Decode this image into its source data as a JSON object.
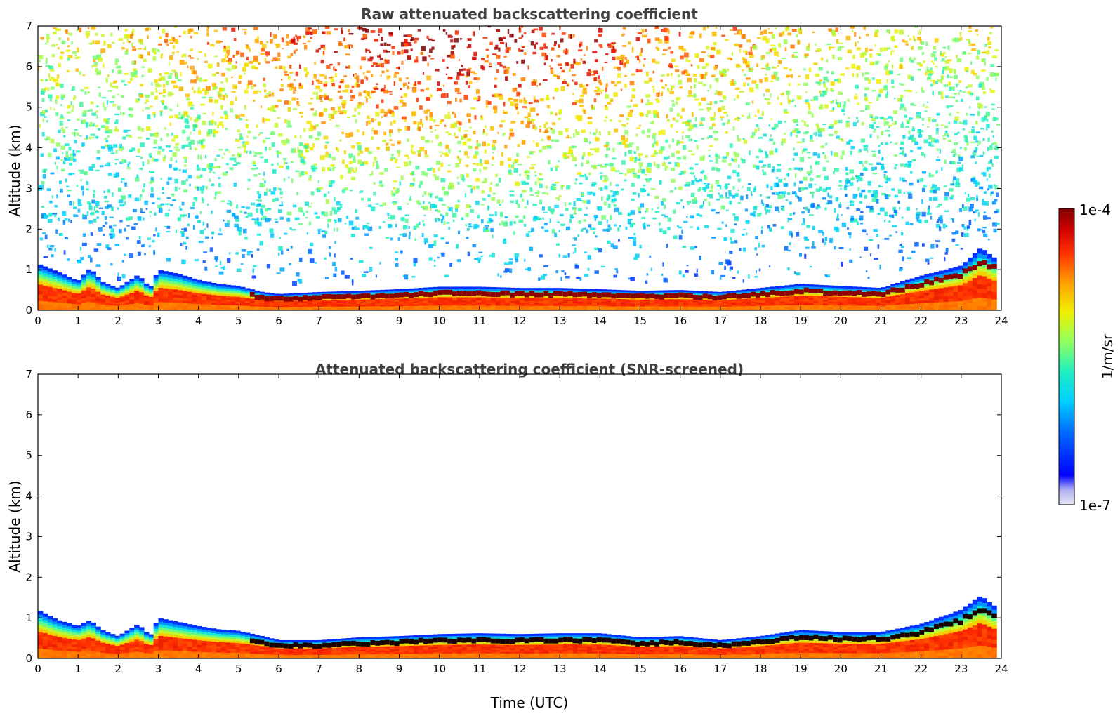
{
  "chart_data": [
    {
      "type": "heatmap",
      "title": "Raw attenuated backscattering coefficient",
      "xlabel": "",
      "ylabel": "Altitude (km)",
      "xlim": [
        0,
        24
      ],
      "ylim": [
        0,
        7
      ],
      "xticks": [
        "0",
        "1",
        "2",
        "3",
        "4",
        "5",
        "6",
        "7",
        "8",
        "9",
        "10",
        "11",
        "12",
        "13",
        "14",
        "15",
        "16",
        "17",
        "18",
        "19",
        "20",
        "21",
        "22",
        "23",
        "24"
      ],
      "yticks": [
        "0",
        "1",
        "2",
        "3",
        "4",
        "5",
        "6",
        "7"
      ],
      "data_end_time": 23.8,
      "screened": false,
      "boundary_layer_top_km": [
        [
          0.0,
          1.15
        ],
        [
          0.5,
          0.95
        ],
        [
          1.0,
          0.72
        ],
        [
          1.3,
          1.05
        ],
        [
          1.6,
          0.7
        ],
        [
          2.0,
          0.55
        ],
        [
          2.5,
          0.88
        ],
        [
          2.8,
          0.55
        ],
        [
          3.0,
          1.0
        ],
        [
          3.5,
          0.9
        ],
        [
          4.0,
          0.75
        ],
        [
          4.5,
          0.65
        ],
        [
          5.0,
          0.6
        ],
        [
          5.6,
          0.45
        ],
        [
          6.0,
          0.4
        ],
        [
          7.0,
          0.45
        ],
        [
          8.0,
          0.48
        ],
        [
          9.0,
          0.52
        ],
        [
          10.0,
          0.58
        ],
        [
          11.0,
          0.58
        ],
        [
          12.0,
          0.55
        ],
        [
          13.0,
          0.55
        ],
        [
          14.0,
          0.52
        ],
        [
          15.0,
          0.48
        ],
        [
          16.0,
          0.5
        ],
        [
          17.0,
          0.45
        ],
        [
          18.0,
          0.55
        ],
        [
          19.0,
          0.65
        ],
        [
          20.0,
          0.6
        ],
        [
          21.0,
          0.55
        ],
        [
          22.0,
          0.85
        ],
        [
          23.0,
          1.1
        ],
        [
          23.5,
          1.55
        ],
        [
          23.8,
          1.3
        ]
      ]
    },
    {
      "type": "heatmap",
      "title": "Attenuated backscattering coefficient (SNR-screened)",
      "xlabel": "Time (UTC)",
      "ylabel": "Altitude (km)",
      "xlim": [
        0,
        24
      ],
      "ylim": [
        0,
        7
      ],
      "xticks": [
        "0",
        "1",
        "2",
        "3",
        "4",
        "5",
        "6",
        "7",
        "8",
        "9",
        "10",
        "11",
        "12",
        "13",
        "14",
        "15",
        "16",
        "17",
        "18",
        "19",
        "20",
        "21",
        "22",
        "23",
        "24"
      ],
      "yticks": [
        "0",
        "1",
        "2",
        "3",
        "4",
        "5",
        "6",
        "7"
      ],
      "data_end_time": 23.8,
      "screened": true,
      "boundary_layer_top_km": [
        [
          0.0,
          1.2
        ],
        [
          0.5,
          0.95
        ],
        [
          1.0,
          0.8
        ],
        [
          1.3,
          0.95
        ],
        [
          1.6,
          0.7
        ],
        [
          2.0,
          0.55
        ],
        [
          2.5,
          0.85
        ],
        [
          2.8,
          0.55
        ],
        [
          3.0,
          1.0
        ],
        [
          3.5,
          0.9
        ],
        [
          4.0,
          0.8
        ],
        [
          4.5,
          0.72
        ],
        [
          5.0,
          0.68
        ],
        [
          5.6,
          0.55
        ],
        [
          6.0,
          0.45
        ],
        [
          7.0,
          0.45
        ],
        [
          8.0,
          0.52
        ],
        [
          9.0,
          0.55
        ],
        [
          10.0,
          0.6
        ],
        [
          11.0,
          0.62
        ],
        [
          12.0,
          0.6
        ],
        [
          13.0,
          0.62
        ],
        [
          14.0,
          0.62
        ],
        [
          15.0,
          0.52
        ],
        [
          16.0,
          0.55
        ],
        [
          17.0,
          0.45
        ],
        [
          18.0,
          0.55
        ],
        [
          19.0,
          0.7
        ],
        [
          20.0,
          0.65
        ],
        [
          21.0,
          0.65
        ],
        [
          22.0,
          0.85
        ],
        [
          23.0,
          1.2
        ],
        [
          23.5,
          1.55
        ],
        [
          23.8,
          1.3
        ]
      ]
    }
  ],
  "colorbar": {
    "max_label": "1e-4",
    "min_label": "1e-7",
    "units": "1/m/sr",
    "scale": "log",
    "range": [
      1e-07,
      0.0001
    ],
    "colormap": "jet"
  }
}
